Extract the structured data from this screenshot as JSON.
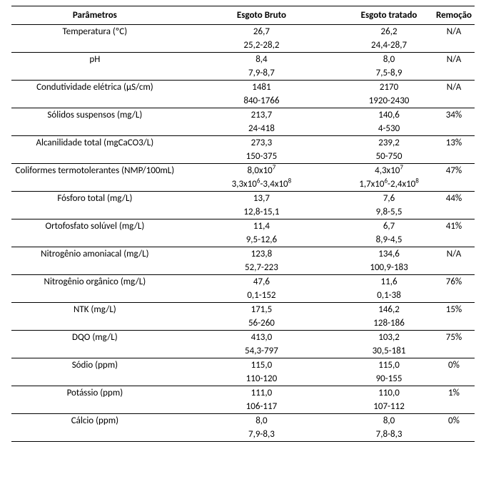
{
  "table": {
    "headers": {
      "param": "Parâmetros",
      "bruto": "Esgoto Bruto",
      "tratado": "Esgoto tratado",
      "remocao": "Remoção"
    },
    "rows": [
      {
        "param": "Temperatura (ºC)",
        "bruto_avg": "26,7",
        "bruto_range": "25,2-28,2",
        "tratado_avg": "26,2",
        "tratado_range": "24,4-28,7",
        "remocao": "N/A"
      },
      {
        "param": "pH",
        "bruto_avg": "8,4",
        "bruto_range": "7,9-8,7",
        "tratado_avg": "8,0",
        "tratado_range": "7,5-8,9",
        "remocao": "N/A"
      },
      {
        "param": "Condutividade elétrica (µS/cm)",
        "bruto_avg": "1481",
        "bruto_range": "840-1766",
        "tratado_avg": "2170",
        "tratado_range": "1920-2430",
        "remocao": "N/A"
      },
      {
        "param": "Sólidos suspensos (mg/L)",
        "bruto_avg": "213,7",
        "bruto_range": "24-418",
        "tratado_avg": "140,6",
        "tratado_range": "4-530",
        "remocao": "34%"
      },
      {
        "param": "Alcanilidade total (mgCaCO3/L)",
        "bruto_avg": "273,3",
        "bruto_range": "150-375",
        "tratado_avg": "239,2",
        "tratado_range": "50-750",
        "remocao": "13%"
      },
      {
        "param": "Coliformes termotolerantes (NMP/100mL)",
        "bruto_avg_html": "8,0x10<span class=\"sup\">7</span>",
        "bruto_range_html": "3,3x10<span class=\"sup\">6</span>-3,4x10<span class=\"sup\">8</span>",
        "tratado_avg_html": "4,3x10<span class=\"sup\">7</span>",
        "tratado_range_html": "1,7x10<span class=\"sup\">6</span>-2,4x10<span class=\"sup\">8</span>",
        "remocao": "47%"
      },
      {
        "param": "Fósforo total (mg/L)",
        "bruto_avg": "13,7",
        "bruto_range": "12,8-15,1",
        "tratado_avg": "7,6",
        "tratado_range": "9,8-5,5",
        "remocao": "44%"
      },
      {
        "param": "Ortofosfato solúvel (mg/L)",
        "bruto_avg": "11,4",
        "bruto_range": "9,5-12,6",
        "tratado_avg": "6,7",
        "tratado_range": "8,9-4,5",
        "remocao": "41%"
      },
      {
        "param": "Nitrogênio amoniacal (mg/L)",
        "bruto_avg": "123,8",
        "bruto_range": "52,7-223",
        "tratado_avg": "134,6",
        "tratado_range": "100,9-183",
        "remocao": "N/A"
      },
      {
        "param": "Nitrogênio orgânico (mg/L)",
        "bruto_avg": "47,6",
        "bruto_range": "0,1-152",
        "tratado_avg": "11,6",
        "tratado_range": "0,1-38",
        "remocao": "76%"
      },
      {
        "param": "NTK (mg/L)",
        "bruto_avg": "171,5",
        "bruto_range": "56-260",
        "tratado_avg": "146,2",
        "tratado_range": "128-186",
        "remocao": "15%"
      },
      {
        "param": "DQO (mg/L)",
        "bruto_avg": "413,0",
        "bruto_range": "54,3-797",
        "tratado_avg": "103,2",
        "tratado_range": "30,5-181",
        "remocao": "75%"
      },
      {
        "param": "Sódio (ppm)",
        "bruto_avg": "115,0",
        "bruto_range": "110-120",
        "tratado_avg": "115,0",
        "tratado_range": "90-155",
        "remocao": "0%"
      },
      {
        "param": "Potássio (ppm)",
        "bruto_avg": "111,0",
        "bruto_range": "106-117",
        "tratado_avg": "110,0",
        "tratado_range": "107-112",
        "remocao": "1%"
      },
      {
        "param": "Cálcio (ppm)",
        "bruto_avg": "8,0",
        "bruto_range": "7,9-8,3",
        "tratado_avg": "8,0",
        "tratado_range": "7,8-8,3",
        "remocao": "0%"
      }
    ]
  },
  "style": {
    "font_family": "Calibri, Segoe UI, Arial, sans-serif",
    "font_size_pt": 10,
    "text_color": "#000000",
    "background_color": "#ffffff",
    "border_color": "#000000",
    "header_border_top_width": 1.5,
    "header_border_bottom_width": 1,
    "row_border_width": 1,
    "column_widths_pct": [
      40,
      22,
      22,
      16
    ],
    "column_align": [
      "center",
      "center",
      "center",
      "center"
    ]
  }
}
